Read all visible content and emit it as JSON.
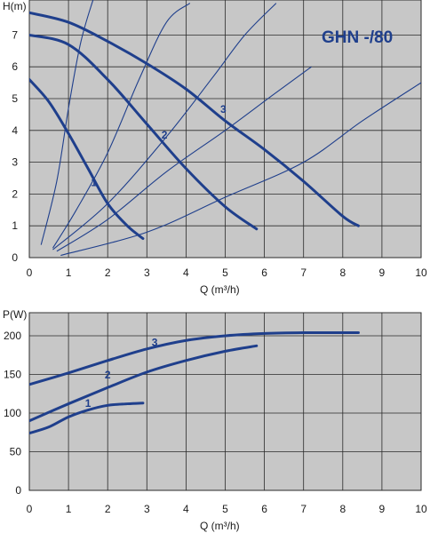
{
  "chart_data": [
    {
      "type": "line",
      "title": "GHN -/80",
      "ylabel": "H(m)",
      "xlabel": "Q (m³/h)",
      "xlim": [
        0,
        10
      ],
      "ylim": [
        0,
        8
      ],
      "x_ticks": [
        "0",
        "1",
        "2",
        "3",
        "4",
        "5",
        "6",
        "7",
        "8",
        "9",
        "10"
      ],
      "y_ticks": [
        "0",
        "1",
        "2",
        "3",
        "4",
        "5",
        "6",
        "7"
      ],
      "grid": true,
      "curve_color": "#1f3f8c",
      "background": "#c7c7c7",
      "series": [
        {
          "name": "1",
          "x": [
            0,
            0.5,
            1.0,
            1.5,
            2.0,
            2.5,
            2.9
          ],
          "y": [
            5.6,
            4.9,
            3.9,
            2.8,
            1.7,
            1.0,
            0.6
          ]
        },
        {
          "name": "2",
          "x": [
            0,
            1,
            2,
            3,
            4,
            5,
            5.8
          ],
          "y": [
            7.0,
            6.7,
            5.6,
            4.2,
            2.8,
            1.6,
            0.9
          ]
        },
        {
          "name": "3",
          "x": [
            0,
            1,
            2,
            3,
            4,
            5,
            6,
            7,
            8,
            8.4
          ],
          "y": [
            7.7,
            7.4,
            6.8,
            6.1,
            5.3,
            4.3,
            3.4,
            2.4,
            1.3,
            1.0
          ]
        }
      ],
      "system_curves": [
        {
          "x": [
            0.3,
            0.7,
            1.0,
            1.3,
            1.6,
            1.9
          ],
          "y": [
            0.4,
            2.4,
            4.7,
            6.7,
            8.0,
            9.0
          ]
        },
        {
          "x": [
            0.6,
            1.2,
            2.0,
            2.8,
            3.5,
            4.1
          ],
          "y": [
            0.3,
            1.5,
            3.3,
            5.6,
            7.4,
            8.0
          ]
        },
        {
          "x": [
            0.6,
            2.0,
            3.5,
            4.7,
            5.5,
            6.3
          ],
          "y": [
            0.25,
            1.7,
            3.8,
            5.7,
            7.0,
            8.0
          ]
        },
        {
          "x": [
            0.7,
            2.0,
            3.5,
            5.0,
            6.2,
            7.2
          ],
          "y": [
            0.2,
            1.2,
            2.7,
            4.0,
            5.1,
            6.0
          ]
        },
        {
          "x": [
            0.8,
            3.0,
            5.0,
            7.0,
            8.5,
            10.0
          ],
          "y": [
            0.07,
            0.8,
            1.9,
            3.0,
            4.3,
            5.5
          ]
        }
      ]
    },
    {
      "type": "line",
      "ylabel": "P(W)",
      "xlabel": "Q (m³/h)",
      "xlim": [
        0,
        10
      ],
      "ylim": [
        0,
        200
      ],
      "x_ticks": [
        "0",
        "1",
        "2",
        "3",
        "4",
        "5",
        "6",
        "7",
        "8",
        "9",
        "10"
      ],
      "y_ticks": [
        "0",
        "50",
        "100",
        "150",
        "200"
      ],
      "grid": true,
      "curve_color": "#1f3f8c",
      "background": "#c7c7c7",
      "series": [
        {
          "name": "1",
          "x": [
            0,
            0.5,
            1.0,
            1.5,
            2.0,
            2.5,
            2.9
          ],
          "y": [
            74,
            82,
            95,
            104,
            110,
            112,
            113
          ]
        },
        {
          "name": "2",
          "x": [
            0,
            1,
            2,
            3,
            4,
            5,
            5.8
          ],
          "y": [
            90,
            112,
            133,
            153,
            168,
            180,
            187
          ]
        },
        {
          "name": "3",
          "x": [
            0,
            1,
            2,
            3,
            4,
            5,
            6,
            7,
            8,
            8.4
          ],
          "y": [
            137,
            152,
            168,
            183,
            194,
            200,
            203,
            204,
            204,
            204
          ]
        }
      ]
    }
  ]
}
